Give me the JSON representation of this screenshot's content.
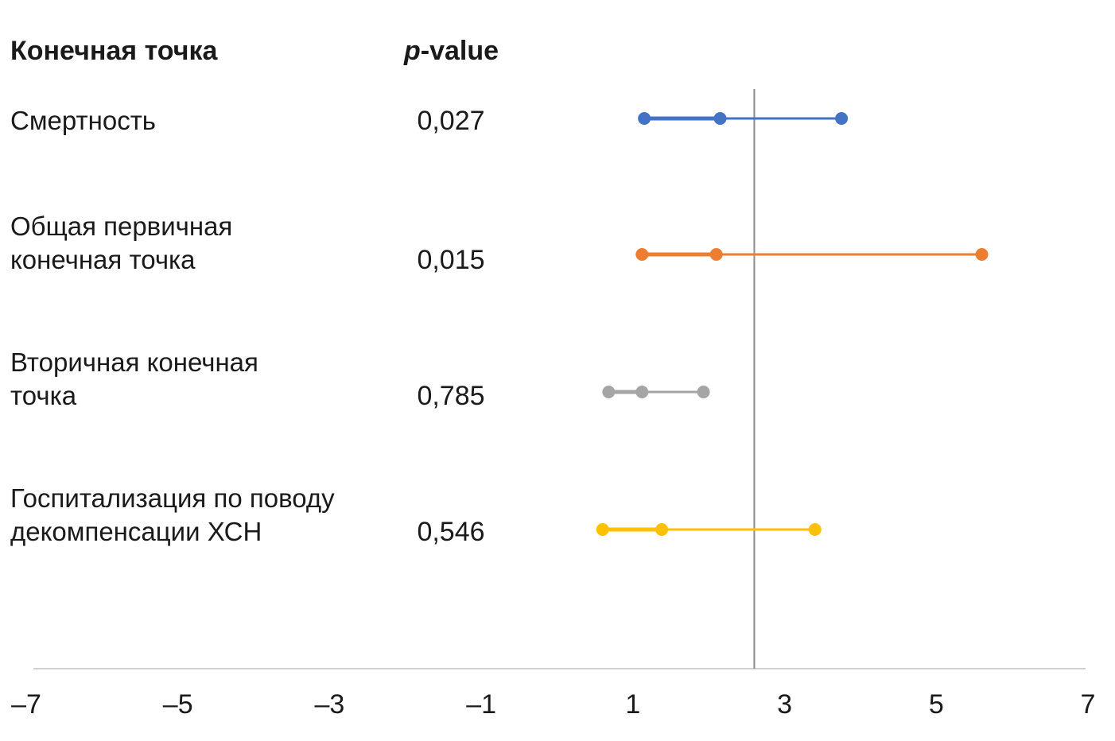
{
  "chart_data": {
    "type": "forest",
    "headers": {
      "endpoint": "Конечная точка",
      "pvalue_italic": "p",
      "pvalue_rest": "-value"
    },
    "xlim": [
      -7,
      7
    ],
    "x_ticks": [
      "–7",
      "–5",
      "–3",
      "–1",
      "1",
      "3",
      "5",
      "7"
    ],
    "x_tick_values": [
      -7,
      -5,
      -3,
      -1,
      1,
      3,
      5,
      7
    ],
    "reference_line": 2.6,
    "series": [
      {
        "name_lines": [
          "Смертность"
        ],
        "pvalue": "0,027",
        "low": 1.15,
        "point": 2.15,
        "high": 3.75,
        "color": "#4472C4"
      },
      {
        "name_lines": [
          "Общая первичная",
          "конечная точка"
        ],
        "pvalue": "0,015",
        "low": 1.12,
        "point": 2.1,
        "high": 5.6,
        "color": "#ED7D31"
      },
      {
        "name_lines": [
          "Вторичная конечная",
          "точка"
        ],
        "pvalue": "0,785",
        "low": 0.68,
        "point": 1.12,
        "high": 1.93,
        "color": "#A5A5A5"
      },
      {
        "name_lines": [
          "Госпитализация по поводу",
          "декомпенсации ХСН"
        ],
        "pvalue": "0,546",
        "low": 0.6,
        "point": 1.38,
        "high": 3.4,
        "color": "#FFC000"
      }
    ]
  }
}
